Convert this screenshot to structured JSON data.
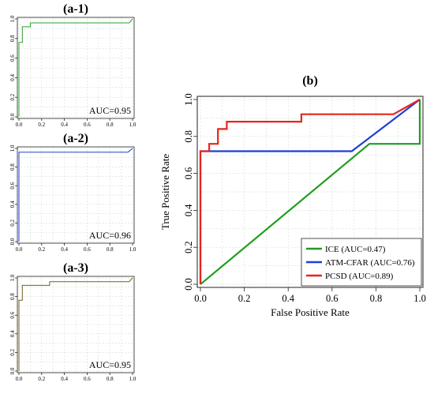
{
  "chart_data": [
    {
      "type": "line",
      "title": "(a-1)",
      "xlim": [
        0,
        1
      ],
      "ylim": [
        0,
        1
      ],
      "x_ticks": [
        "0.0",
        "0.2",
        "0.4",
        "0.6",
        "0.8",
        "1.0"
      ],
      "y_ticks": [
        "0.0",
        "0.2",
        "0.4",
        "0.6",
        "0.8",
        "1.0"
      ],
      "annotation": "AUC=0.95",
      "grid": true,
      "series": [
        {
          "color": "#2ca02c",
          "points": [
            [
              0,
              0
            ],
            [
              0,
              0.76
            ],
            [
              0.03,
              0.76
            ],
            [
              0.03,
              0.92
            ],
            [
              0.1,
              0.92
            ],
            [
              0.1,
              0.96
            ],
            [
              0.97,
              0.96
            ],
            [
              1,
              1
            ]
          ]
        }
      ]
    },
    {
      "type": "line",
      "title": "(a-2)",
      "xlim": [
        0,
        1
      ],
      "ylim": [
        0,
        1
      ],
      "x_ticks": [
        "0.0",
        "0.2",
        "0.4",
        "0.6",
        "0.8",
        "1.0"
      ],
      "y_ticks": [
        "0.0",
        "0.2",
        "0.4",
        "0.6",
        "0.8",
        "1.0"
      ],
      "annotation": "AUC=0.96",
      "grid": true,
      "series": [
        {
          "color": "#1f3fd6",
          "points": [
            [
              0,
              0
            ],
            [
              0,
              0.96
            ],
            [
              0.96,
              0.96
            ],
            [
              1,
              1
            ]
          ]
        }
      ]
    },
    {
      "type": "line",
      "title": "(a-3)",
      "xlim": [
        0,
        1
      ],
      "ylim": [
        0,
        1
      ],
      "x_ticks": [
        "0.0",
        "0.2",
        "0.4",
        "0.6",
        "0.8",
        "1.0"
      ],
      "y_ticks": [
        "0.0",
        "0.2",
        "0.4",
        "0.6",
        "0.8",
        "1.0"
      ],
      "annotation": "AUC=0.95",
      "grid": true,
      "series": [
        {
          "color": "#7a5c1c",
          "points": [
            [
              0,
              0
            ],
            [
              0,
              0.76
            ],
            [
              0.03,
              0.76
            ],
            [
              0.03,
              0.92
            ],
            [
              0.27,
              0.92
            ],
            [
              0.27,
              0.96
            ],
            [
              0.97,
              0.96
            ],
            [
              1,
              1
            ]
          ]
        }
      ]
    },
    {
      "type": "line",
      "title": "(b)",
      "xlabel": "False Positive Rate",
      "ylabel": "True Positive Rate",
      "xlim": [
        0,
        1
      ],
      "ylim": [
        0,
        1
      ],
      "x_ticks": [
        "0.0",
        "0.2",
        "0.4",
        "0.6",
        "0.8",
        "1.0"
      ],
      "y_ticks": [
        "0.0",
        "0.2",
        "0.4",
        "0.6",
        "0.8",
        "1.0"
      ],
      "grid": true,
      "legend_position": "bottom-right",
      "series": [
        {
          "name": "ICE (AUC=0.47)",
          "color": "#1e9e1e",
          "points": [
            [
              0,
              0
            ],
            [
              0.77,
              0.76
            ],
            [
              1,
              0.76
            ],
            [
              1,
              1
            ]
          ]
        },
        {
          "name": "ATM-CFAR (AUC=0.76)",
          "color": "#1f3fd6",
          "points": [
            [
              0,
              0
            ],
            [
              0,
              0.72
            ],
            [
              0.69,
              0.72
            ],
            [
              1,
              1
            ]
          ]
        },
        {
          "name": "PCSD (AUC=0.89)",
          "color": "#e8251c",
          "points": [
            [
              0,
              0
            ],
            [
              0,
              0.72
            ],
            [
              0.04,
              0.72
            ],
            [
              0.04,
              0.76
            ],
            [
              0.08,
              0.76
            ],
            [
              0.08,
              0.84
            ],
            [
              0.12,
              0.84
            ],
            [
              0.12,
              0.88
            ],
            [
              0.46,
              0.88
            ],
            [
              0.46,
              0.92
            ],
            [
              0.88,
              0.92
            ],
            [
              1,
              1
            ]
          ]
        }
      ]
    }
  ]
}
